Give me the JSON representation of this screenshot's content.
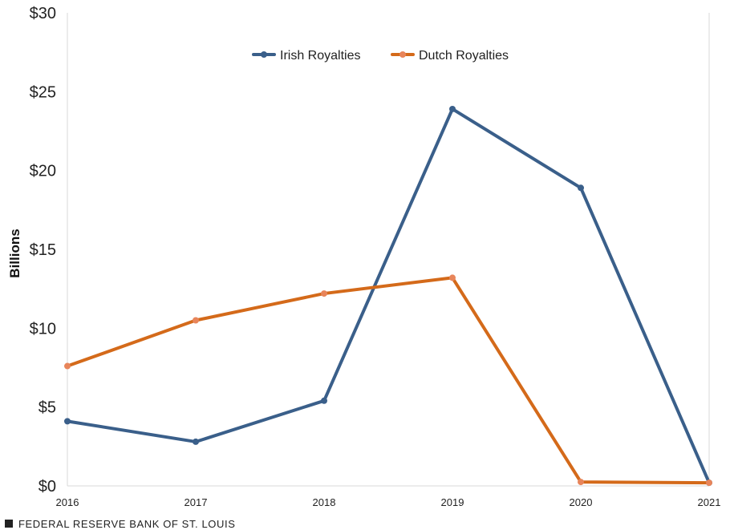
{
  "chart_data": {
    "type": "line",
    "title": "",
    "xlabel": "",
    "ylabel": "Billions",
    "x": [
      "2016",
      "2017",
      "2018",
      "2019",
      "2020",
      "2021"
    ],
    "ylim": [
      0,
      30
    ],
    "yticks": [
      {
        "value": 0,
        "label": "$0"
      },
      {
        "value": 5,
        "label": "$5"
      },
      {
        "value": 10,
        "label": "$10"
      },
      {
        "value": 15,
        "label": "$15"
      },
      {
        "value": 20,
        "label": "$20"
      },
      {
        "value": 25,
        "label": "$25"
      },
      {
        "value": 30,
        "label": "$30"
      }
    ],
    "legend_position": "top-center",
    "grid": false,
    "series": [
      {
        "name": "Irish Royalties",
        "color": "#3a5f8a",
        "values": [
          4.1,
          2.8,
          5.4,
          23.9,
          18.9,
          0.2
        ]
      },
      {
        "name": "Dutch Royalties",
        "color": "#d46a1a",
        "marker_color": "#e8855a",
        "values": [
          7.6,
          10.5,
          12.2,
          13.2,
          0.25,
          0.2
        ]
      }
    ]
  },
  "footer": {
    "source": "FEDERAL RESERVE BANK OF ST. LOUIS"
  }
}
